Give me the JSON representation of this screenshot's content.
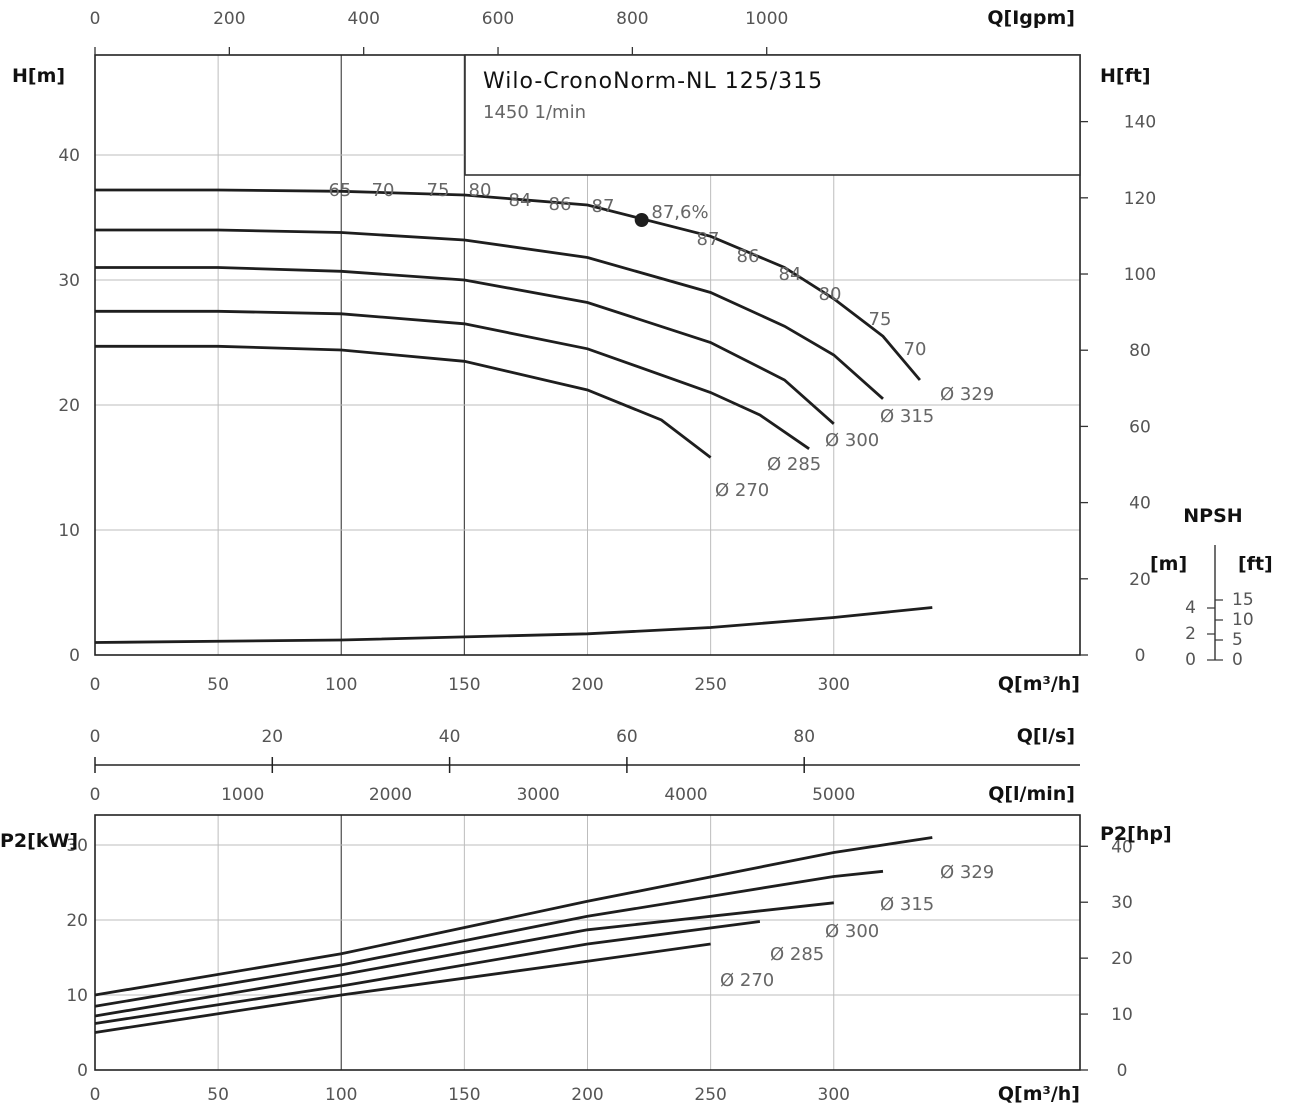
{
  "colors": {
    "curve": "#1e1e1e",
    "grid": "#bdbdbd",
    "text": "#555555"
  },
  "chart_data": [
    {
      "type": "line",
      "title": "Wilo-CronoNorm-NL 125/315",
      "subtitle": "1450 1/min",
      "xlabel": "Q[m³/h]",
      "ylabel": "H[m]",
      "ylabel_right": "H[ft]",
      "xlabel_top": "Q[Igpm]",
      "xlim": [
        0,
        400
      ],
      "ylim": [
        0,
        48
      ],
      "x_ticks": [
        "0",
        "50",
        "100",
        "150",
        "200",
        "250",
        "300"
      ],
      "y_ticks": [
        "0",
        "10",
        "20",
        "30",
        "40"
      ],
      "top_ticks": [
        "0",
        "200",
        "400",
        "600",
        "800",
        "1000"
      ],
      "right_ticks": [
        "0",
        "20",
        "40",
        "60",
        "80",
        "100",
        "120",
        "140"
      ],
      "series": [
        {
          "name": "Ø 329",
          "x": [
            0,
            50,
            100,
            150,
            200,
            250,
            280,
            300,
            320,
            335
          ],
          "y": [
            37.2,
            37.2,
            37.1,
            36.8,
            36.0,
            33.5,
            31.0,
            28.5,
            25.5,
            22.0
          ]
        },
        {
          "name": "Ø 315",
          "x": [
            0,
            50,
            100,
            150,
            200,
            250,
            280,
            300,
            320
          ],
          "y": [
            34.0,
            34.0,
            33.8,
            33.2,
            31.8,
            29.0,
            26.3,
            24.0,
            20.5
          ]
        },
        {
          "name": "Ø 300",
          "x": [
            0,
            50,
            100,
            150,
            200,
            250,
            280,
            300
          ],
          "y": [
            31.0,
            31.0,
            30.7,
            30.0,
            28.2,
            25.0,
            22.0,
            18.5
          ]
        },
        {
          "name": "Ø 285",
          "x": [
            0,
            50,
            100,
            150,
            200,
            250,
            270,
            290
          ],
          "y": [
            27.5,
            27.5,
            27.3,
            26.5,
            24.5,
            21.0,
            19.2,
            16.5
          ]
        },
        {
          "name": "Ø 270",
          "x": [
            0,
            50,
            100,
            150,
            200,
            230,
            250
          ],
          "y": [
            24.7,
            24.7,
            24.4,
            23.5,
            21.2,
            18.8,
            15.8
          ]
        }
      ],
      "npsh_curve": {
        "name": "NPSH",
        "x": [
          0,
          100,
          200,
          250,
          300,
          340
        ],
        "y": [
          1.0,
          1.2,
          1.7,
          2.2,
          3.0,
          3.8
        ]
      },
      "duty_point": {
        "x": 222,
        "y": 34.8
      },
      "efficiency_labels": [
        "65",
        "70",
        "75",
        "80",
        "84",
        "86",
        "87",
        "87,6%",
        "87",
        "86",
        "84",
        "80",
        "75",
        "70"
      ],
      "curve_labels": [
        "Ø 329",
        "Ø 315",
        "Ø 300",
        "Ø 285",
        "Ø 270"
      ],
      "npsh_scale": {
        "title": "NPSH",
        "left_unit": "[m]",
        "right_unit": "[ft]",
        "left_ticks": [
          "0",
          "2",
          "4"
        ],
        "right_ticks": [
          "0",
          "5",
          "10",
          "15"
        ]
      }
    },
    {
      "type": "line",
      "xlabel_flow_ls": "Q[l/s]",
      "xlabel_flow_lmin": "Q[l/min]",
      "ls_ticks": [
        "0",
        "20",
        "40",
        "60",
        "80"
      ],
      "lmin_ticks": [
        "0",
        "1000",
        "2000",
        "3000",
        "4000",
        "5000"
      ]
    },
    {
      "type": "line",
      "xlabel": "Q[m³/h]",
      "ylabel": "P2[kW]",
      "ylabel_right": "P2[hp]",
      "xlim": [
        0,
        400
      ],
      "ylim": [
        0,
        34
      ],
      "x_ticks": [
        "0",
        "50",
        "100",
        "150",
        "200",
        "250",
        "300"
      ],
      "y_ticks": [
        "0",
        "10",
        "20",
        "30"
      ],
      "right_ticks": [
        "0",
        "10",
        "20",
        "30",
        "40"
      ],
      "series": [
        {
          "name": "Ø 329",
          "x": [
            0,
            100,
            200,
            300,
            340
          ],
          "y": [
            10.0,
            15.5,
            22.5,
            29.0,
            31.0
          ]
        },
        {
          "name": "Ø 315",
          "x": [
            0,
            100,
            200,
            300,
            320
          ],
          "y": [
            8.5,
            14.0,
            20.5,
            25.8,
            26.5
          ]
        },
        {
          "name": "Ø 300",
          "x": [
            0,
            100,
            200,
            300
          ],
          "y": [
            7.2,
            12.7,
            18.7,
            22.3
          ]
        },
        {
          "name": "Ø 285",
          "x": [
            0,
            100,
            200,
            270
          ],
          "y": [
            6.2,
            11.2,
            16.8,
            19.8
          ]
        },
        {
          "name": "Ø 270",
          "x": [
            0,
            100,
            200,
            250
          ],
          "y": [
            5.0,
            10.0,
            14.5,
            16.8
          ]
        }
      ],
      "curve_labels": [
        "Ø 329",
        "Ø 315",
        "Ø 300",
        "Ø 285",
        "Ø 270"
      ]
    }
  ]
}
